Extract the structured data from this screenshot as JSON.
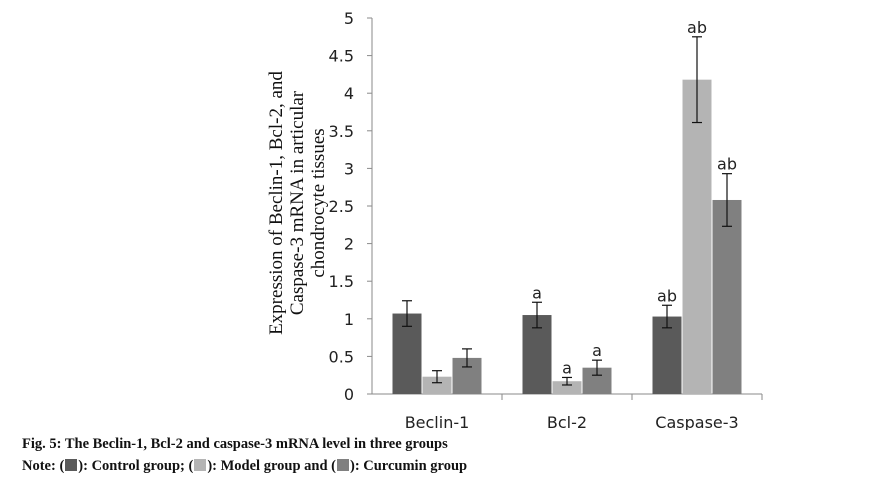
{
  "chart_data": {
    "type": "bar",
    "categories": [
      "Beclin-1",
      "Bcl-2",
      "Caspase-3"
    ],
    "ylabel": "Expression of Beclin-1, Bcl-2, and Caspase-3 mRNA in articular chondrocyte tissues",
    "ylabel_lines": [
      "Expression of Beclin-1, Bcl-2, and",
      "Caspase-3 mRNA in articular",
      "chondrocyte tissues"
    ],
    "ylim": [
      0,
      5
    ],
    "yticks": [
      "0",
      "0.5",
      "1",
      "1.5",
      "2",
      "2.5",
      "3",
      "3.5",
      "4",
      "4.5",
      "5"
    ],
    "grid": false,
    "series": [
      {
        "name": "Control group",
        "color": "#5a5a5a",
        "values": [
          1.07,
          1.05,
          1.03
        ],
        "errors": [
          0.17,
          0.17,
          0.15
        ],
        "annotations": [
          "",
          "a",
          "ab"
        ]
      },
      {
        "name": "Model group",
        "color": "#b4b4b4",
        "values": [
          0.23,
          0.17,
          4.18
        ],
        "errors": [
          0.08,
          0.05,
          0.57
        ],
        "annotations": [
          "",
          "a",
          "ab"
        ]
      },
      {
        "name": "Curcumin group",
        "color": "#808080",
        "values": [
          0.48,
          0.35,
          2.58
        ],
        "errors": [
          0.12,
          0.1,
          0.35
        ],
        "annotations": [
          "",
          "a",
          "ab"
        ]
      }
    ]
  },
  "caption": {
    "title": "Fig. 5: The Beclin-1, Bcl-2 and caspase-3 mRNA level in three groups",
    "note_prefix": "Note: (",
    "note_part1": "): Control group; (",
    "note_part2": "): Model group and (",
    "note_part3": "): Curcumin group"
  }
}
